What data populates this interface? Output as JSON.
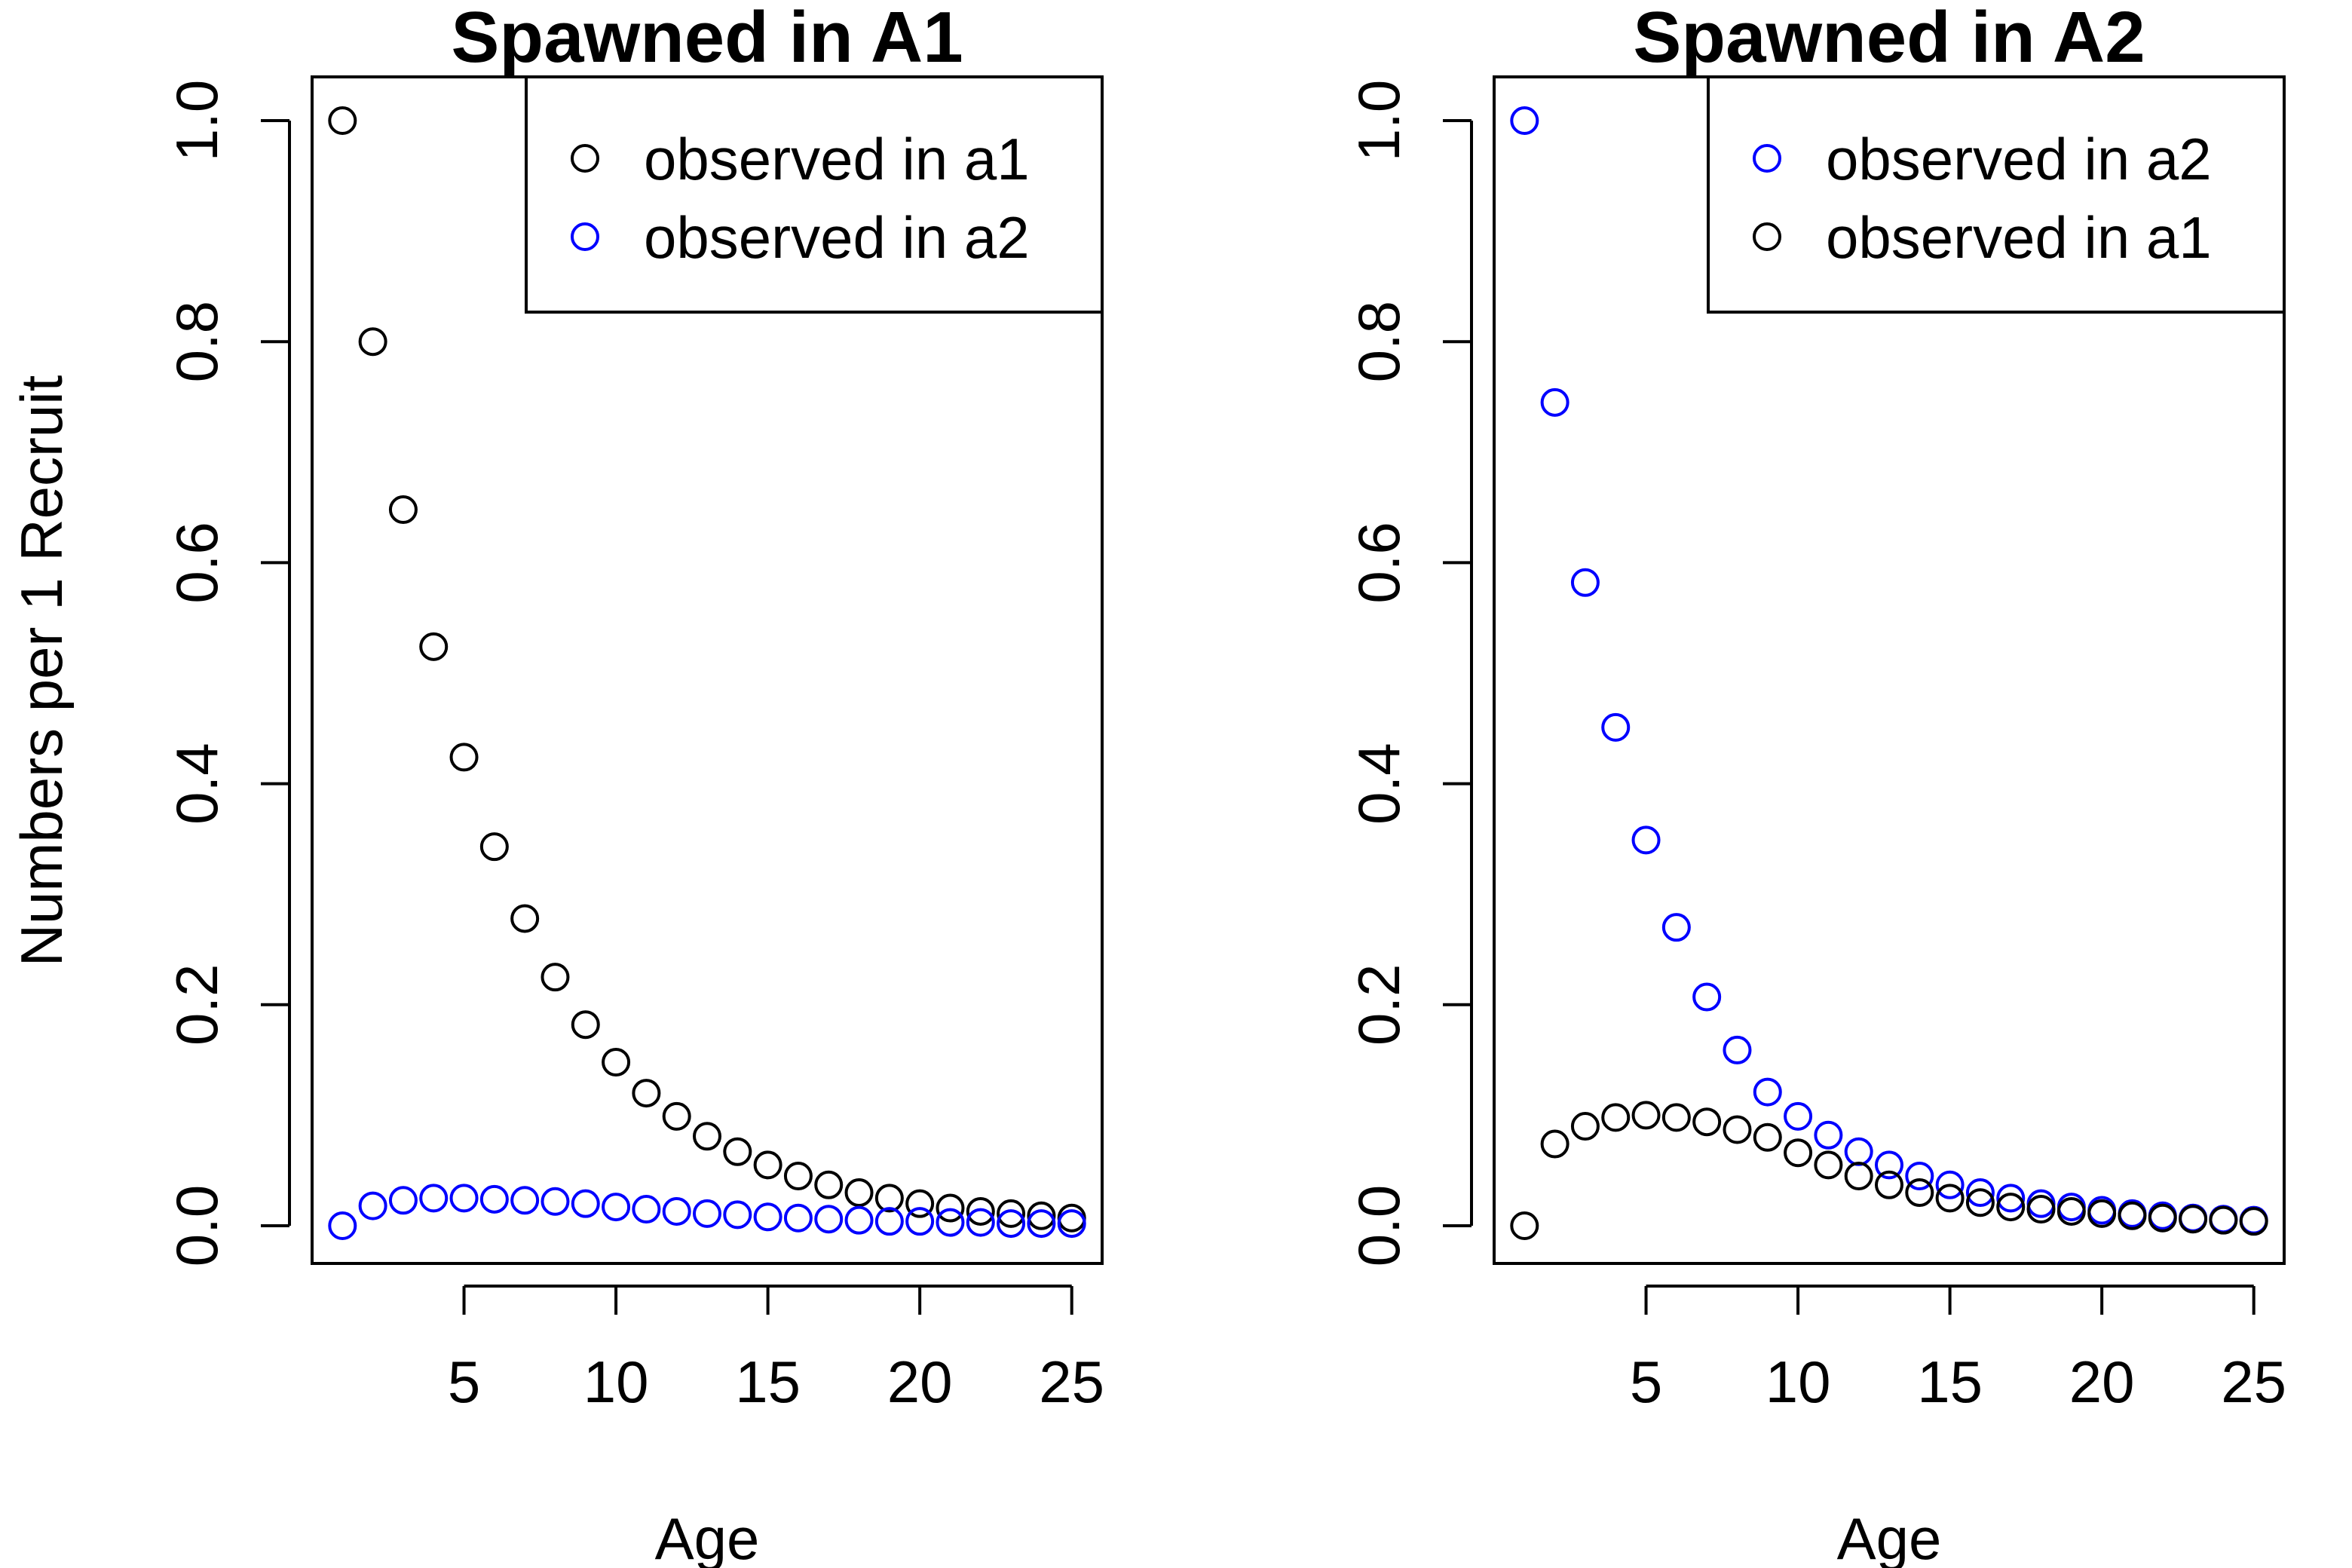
{
  "ylabel": "Numbers per 1 Recruit",
  "chart_data": [
    {
      "type": "scatter",
      "title": "Spawned in A1",
      "xlabel": "Age",
      "ylabel": "Numbers per 1 Recruit",
      "xlim": [
        0,
        26
      ],
      "ylim": [
        0,
        1.0
      ],
      "x_ticks": [
        "5",
        "10",
        "15",
        "20",
        "25"
      ],
      "y_ticks": [
        "0.0",
        "0.2",
        "0.4",
        "0.6",
        "0.8",
        "1.0"
      ],
      "legend_position": "top-right",
      "x": [
        1,
        2,
        3,
        4,
        5,
        6,
        7,
        8,
        9,
        10,
        11,
        12,
        13,
        14,
        15,
        16,
        17,
        18,
        19,
        20,
        21,
        22,
        23,
        24,
        25
      ],
      "series": [
        {
          "name": "observed in a1",
          "color": "#000000",
          "values": [
            1.0,
            0.8,
            0.648,
            0.524,
            0.424,
            0.343,
            0.278,
            0.225,
            0.182,
            0.148,
            0.12,
            0.099,
            0.081,
            0.067,
            0.055,
            0.045,
            0.037,
            0.03,
            0.025,
            0.02,
            0.016,
            0.013,
            0.011,
            0.009,
            0.007
          ]
        },
        {
          "name": "observed in a2",
          "color": "#0000ff",
          "values": [
            0.0,
            0.018,
            0.023,
            0.025,
            0.025,
            0.024,
            0.023,
            0.022,
            0.02,
            0.017,
            0.015,
            0.013,
            0.011,
            0.01,
            0.008,
            0.007,
            0.006,
            0.005,
            0.004,
            0.004,
            0.003,
            0.003,
            0.002,
            0.002,
            0.002
          ]
        }
      ]
    },
    {
      "type": "scatter",
      "title": "Spawned in A2",
      "xlabel": "Age",
      "xlim": [
        0,
        26
      ],
      "ylim": [
        0,
        1.0
      ],
      "x_ticks": [
        "5",
        "10",
        "15",
        "20",
        "25"
      ],
      "y_ticks": [
        "0.0",
        "0.2",
        "0.4",
        "0.6",
        "0.8",
        "1.0"
      ],
      "legend_position": "top-right",
      "x": [
        1,
        2,
        3,
        4,
        5,
        6,
        7,
        8,
        9,
        10,
        11,
        12,
        13,
        14,
        15,
        16,
        17,
        18,
        19,
        20,
        21,
        22,
        23,
        24,
        25
      ],
      "series": [
        {
          "name": "observed in a2",
          "color": "#0000ff",
          "values": [
            1.0,
            0.745,
            0.582,
            0.451,
            0.349,
            0.27,
            0.207,
            0.159,
            0.121,
            0.099,
            0.082,
            0.067,
            0.055,
            0.045,
            0.037,
            0.03,
            0.025,
            0.02,
            0.017,
            0.014,
            0.011,
            0.009,
            0.007,
            0.006,
            0.005
          ]
        },
        {
          "name": "observed in a1",
          "color": "#000000",
          "values": [
            0.0,
            0.074,
            0.09,
            0.098,
            0.1,
            0.098,
            0.094,
            0.087,
            0.08,
            0.066,
            0.055,
            0.045,
            0.037,
            0.03,
            0.025,
            0.021,
            0.017,
            0.015,
            0.013,
            0.011,
            0.009,
            0.007,
            0.006,
            0.005,
            0.004
          ]
        }
      ]
    }
  ]
}
